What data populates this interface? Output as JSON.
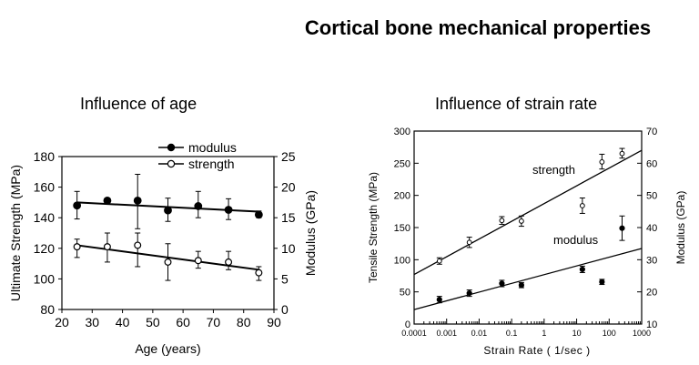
{
  "slide": {
    "title": "Cortical bone mechanical properties"
  },
  "chart_data": [
    {
      "type": "scatter",
      "title": "Influence of age",
      "xlabel": "Age (years)",
      "ylabel": "Ultimate Strength (MPa)",
      "y2label": "Modulus (GPa)",
      "xlim": [
        20,
        90
      ],
      "ylim": [
        80,
        180
      ],
      "y2lim": [
        0,
        25
      ],
      "xticks": [
        "20",
        "30",
        "40",
        "50",
        "60",
        "70",
        "80",
        "90"
      ],
      "yticks": [
        "80",
        "100",
        "120",
        "140",
        "160",
        "180"
      ],
      "y2ticks": [
        "0",
        "5",
        "10",
        "15",
        "20",
        "25"
      ],
      "legend_position": "top-right",
      "series": [
        {
          "name": "modulus",
          "marker": "filled-circle",
          "axis": "right",
          "x": [
            25,
            35,
            45,
            55,
            65,
            75,
            85
          ],
          "y": [
            17.0,
            17.8,
            17.8,
            16.2,
            16.9,
            16.3,
            15.5
          ],
          "err_low": [
            14.8,
            17.8,
            13.2,
            14.4,
            15.0,
            14.7,
            15.0
          ],
          "err_high": [
            19.3,
            17.8,
            22.1,
            18.2,
            19.3,
            18.1,
            16.1
          ],
          "trend": {
            "x": [
              25,
              85
            ],
            "y": [
              17.5,
              16.0
            ]
          }
        },
        {
          "name": "strength",
          "marker": "open-circle",
          "axis": "left",
          "x": [
            25,
            35,
            45,
            55,
            65,
            75,
            85
          ],
          "y": [
            121,
            121,
            122,
            111,
            112,
            111,
            104
          ],
          "err_low": [
            114,
            111,
            108,
            99,
            107,
            106,
            99
          ],
          "err_high": [
            126,
            130,
            130,
            123,
            118,
            118,
            108
          ],
          "trend": {
            "x": [
              25,
              85
            ],
            "y": [
              122,
              106
            ]
          }
        }
      ]
    },
    {
      "type": "scatter",
      "title": "Influence of strain rate",
      "xlabel": "Strain Rate ( 1/sec )",
      "ylabel": "Tensile Strength (MPa)",
      "y2label": "Modulus (GPa)",
      "xscale": "log",
      "xlim": [
        0.0001,
        1000
      ],
      "ylim": [
        0,
        300
      ],
      "y2lim": [
        10,
        70
      ],
      "xticks": [
        "0.0001",
        "0.001",
        "0.01",
        "0.1",
        "1",
        "10",
        "100",
        "1000"
      ],
      "yticks": [
        "0",
        "50",
        "100",
        "150",
        "200",
        "250",
        "300"
      ],
      "y2ticks": [
        "10",
        "20",
        "30",
        "40",
        "50",
        "60",
        "70"
      ],
      "series": [
        {
          "name": "strength",
          "label": "strength",
          "marker": "open-circle",
          "axis": "left",
          "x": [
            0.0006,
            0.005,
            0.05,
            0.2,
            15,
            60,
            250
          ],
          "y": [
            98,
            127,
            161,
            160,
            184,
            252,
            265
          ],
          "err_low": [
            93,
            119,
            155,
            152,
            172,
            241,
            258
          ],
          "err_high": [
            103,
            135,
            167,
            168,
            196,
            264,
            273
          ],
          "trend": {
            "x": [
              0.0001,
              1000
            ],
            "y": [
              77,
              270
            ]
          }
        },
        {
          "name": "modulus",
          "label": "modulus",
          "marker": "filled-circle",
          "axis": "right",
          "x": [
            0.0006,
            0.005,
            0.05,
            0.2,
            15,
            60,
            250
          ],
          "y": [
            17.6,
            19.6,
            22.6,
            22.1,
            27.0,
            23.1,
            39.8
          ],
          "err_low": [
            16.6,
            18.6,
            21.6,
            21.3,
            26.0,
            22.3,
            36.0
          ],
          "err_high": [
            18.6,
            20.6,
            23.6,
            22.9,
            28.0,
            23.9,
            43.6
          ],
          "trend": {
            "x": [
              0.0001,
              1000
            ],
            "y": [
              14.5,
              33.5
            ]
          }
        }
      ]
    }
  ]
}
